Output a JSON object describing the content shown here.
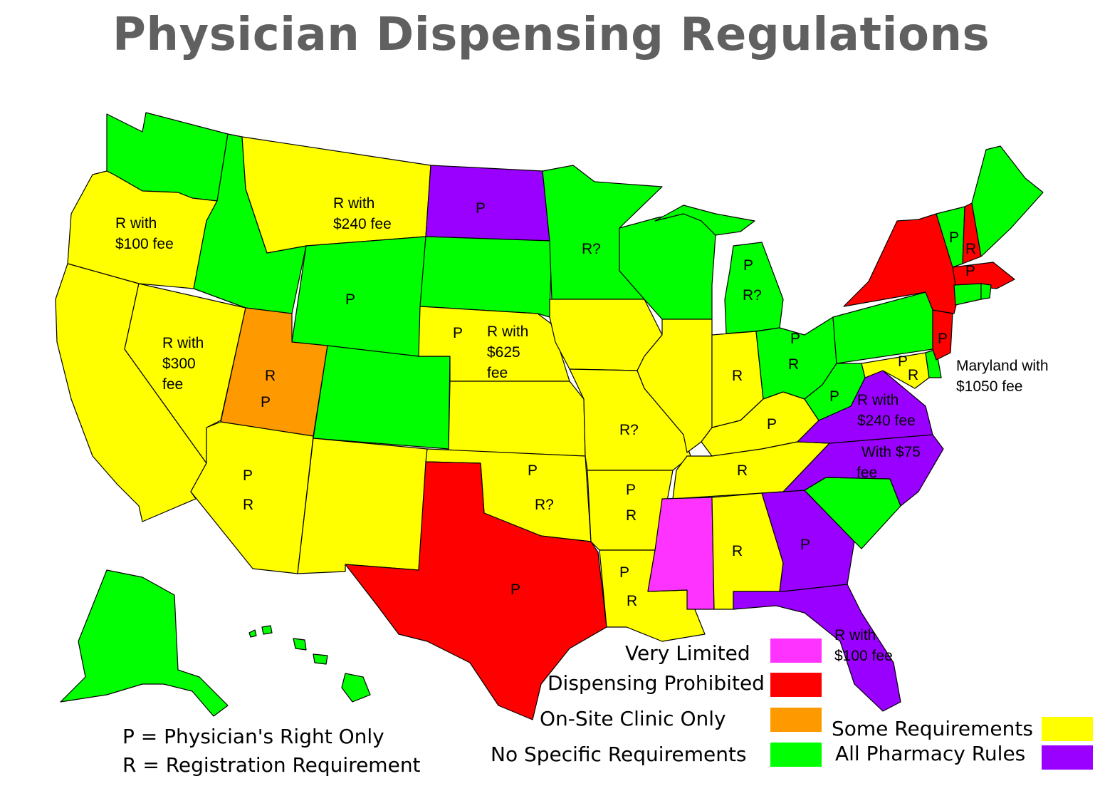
{
  "title": "Physician Dispensing Regulations",
  "colors": {
    "very_limited": "#ff33ff",
    "prohibited": "#ff0000",
    "onsite": "#ff9900",
    "none": "#00ff00",
    "some": "#ffff00",
    "pharmacy": "#9900ff"
  },
  "state_labels": {
    "or": [
      "R with",
      "$100 fee"
    ],
    "mt": [
      "R with",
      "$240 fee"
    ],
    "nd": [
      "P"
    ],
    "nv": [
      "R with",
      "$300",
      "fee"
    ],
    "ut": [
      "R",
      "P"
    ],
    "wy": [
      "P"
    ],
    "ne_p": [
      "P"
    ],
    "ne": [
      "R with",
      "$625",
      "fee"
    ],
    "mn": [
      "R?"
    ],
    "mi": [
      "P",
      "R?"
    ],
    "az": [
      "P",
      "R"
    ],
    "ok": [
      "P",
      "R?"
    ],
    "tx": [
      "P"
    ],
    "ar": [
      "P",
      "R"
    ],
    "la": [
      "P",
      "R"
    ],
    "mo": [
      "R?"
    ],
    "in": [
      "R"
    ],
    "oh": [
      "P",
      "R"
    ],
    "ky": [
      "P"
    ],
    "tn": [
      "R"
    ],
    "al": [
      "R"
    ],
    "ga": [
      "P"
    ],
    "fl": [
      "R with",
      "$100 fee"
    ],
    "wv": [
      "P"
    ],
    "va": [
      "R with",
      "$240 fee"
    ],
    "nc": [
      "With $75",
      "fee"
    ],
    "md_note": [
      "Maryland with",
      "$1050 fee"
    ],
    "vt": [
      "P"
    ],
    "nh": [
      "R",
      "P"
    ],
    "nj": [
      "P"
    ],
    "de": [
      "P"
    ],
    "md": [
      "R"
    ]
  },
  "legend": {
    "very_limited": "Very Limited",
    "prohibited": "Dispensing Prohibited",
    "onsite": "On-Site Clinic Only",
    "none": "No Specific Requirements",
    "some": "Some Requirements",
    "pharmacy": "All Pharmacy Rules"
  },
  "key": {
    "p": "P = Physician's Right Only",
    "r": "R = Registration Requirement"
  }
}
